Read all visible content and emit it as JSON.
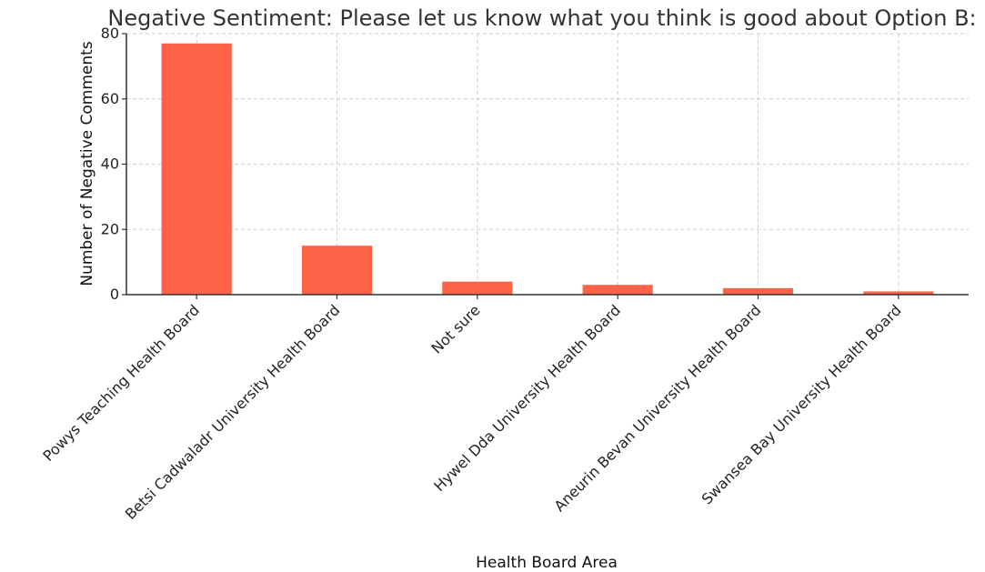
{
  "chart_data": {
    "type": "bar",
    "title": "Negative Sentiment: Please let us know what you think is good about Option B:",
    "xlabel": "Health Board Area",
    "ylabel": "Number of Negative Comments",
    "categories": [
      "Powys Teaching Health Board",
      "Betsi Cadwaladr University Health Board",
      "Not sure",
      "Hywel Dda University Health Board",
      "Aneurin Bevan University Health Board",
      "Swansea Bay University Health Board"
    ],
    "values": [
      77,
      15,
      4,
      3,
      2,
      1
    ],
    "ylim": [
      0,
      80
    ],
    "yticks": [
      0,
      20,
      40,
      60,
      80
    ],
    "grid": true,
    "bar_color": "#ff6347"
  }
}
